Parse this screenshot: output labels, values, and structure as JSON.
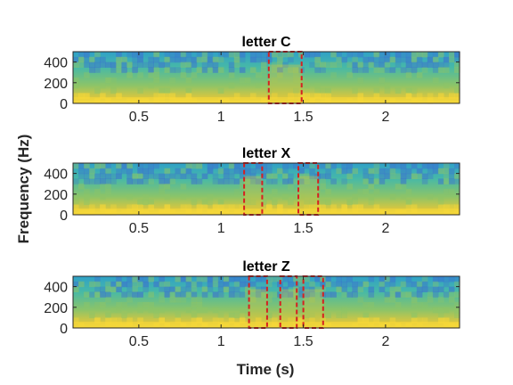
{
  "chart_data": {
    "type": "heatmap",
    "shared_xlabel": "Time (s)",
    "shared_ylabel": "Frequency (Hz)",
    "xlim": [
      0.1,
      2.45
    ],
    "ylim": [
      0,
      500
    ],
    "xticks": [
      0.5,
      1,
      1.5,
      2
    ],
    "xtick_labels": [
      "0.5",
      "1",
      "1.5",
      "2"
    ],
    "yticks": [
      0,
      200,
      400
    ],
    "ytick_labels": [
      "0",
      "200",
      "400"
    ],
    "colormap": [
      "#3b6fd0",
      "#2fa0c8",
      "#47b9a6",
      "#8cc468",
      "#d6c640",
      "#f7d838"
    ],
    "annotation_color": "#d62020",
    "panels": [
      {
        "title": "letter C",
        "highlight_boxes": [
          {
            "x_start": 1.29,
            "x_end": 1.49,
            "y_low": 0,
            "y_high": 500
          }
        ]
      },
      {
        "title": "letter X",
        "highlight_boxes": [
          {
            "x_start": 1.14,
            "x_end": 1.25,
            "y_low": 0,
            "y_high": 500
          },
          {
            "x_start": 1.47,
            "x_end": 1.59,
            "y_low": 0,
            "y_high": 500
          }
        ]
      },
      {
        "title": "letter Z",
        "highlight_boxes": [
          {
            "x_start": 1.17,
            "x_end": 1.28,
            "y_low": 0,
            "y_high": 500
          },
          {
            "x_start": 1.36,
            "x_end": 1.46,
            "y_low": 0,
            "y_high": 500
          },
          {
            "x_start": 1.5,
            "x_end": 1.62,
            "y_low": 0,
            "y_high": 500
          }
        ]
      }
    ]
  }
}
